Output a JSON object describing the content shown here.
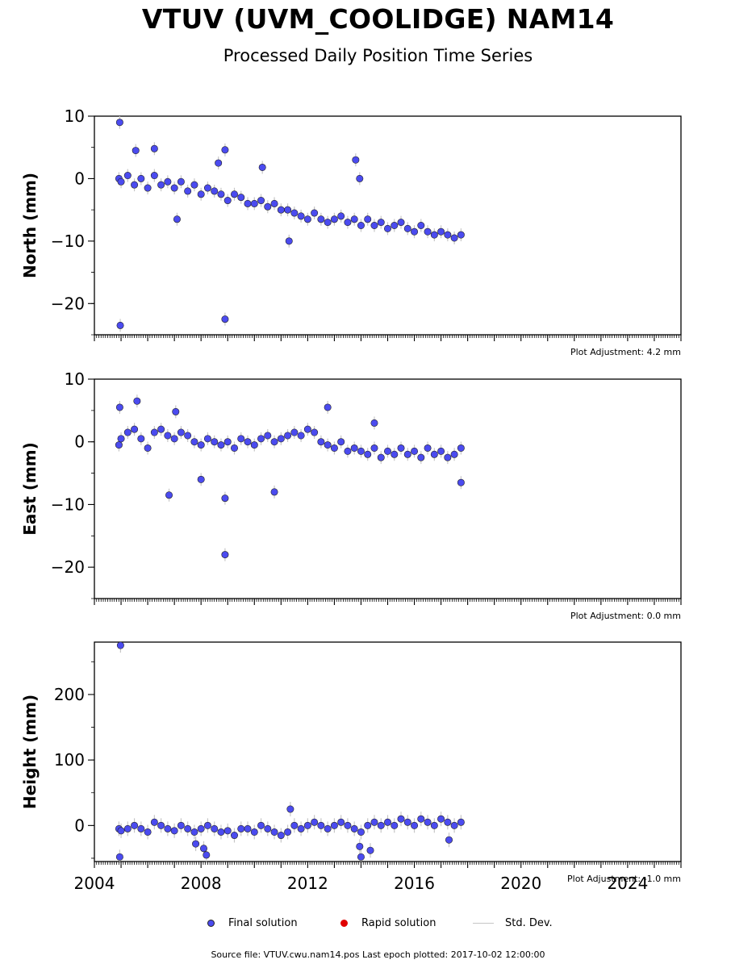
{
  "title": "VTUV (UVM_COOLIDGE) NAM14",
  "subtitle": "Processed Daily Position Time Series",
  "legend": {
    "final": "Final solution",
    "rapid": "Rapid solution",
    "std": "Std. Dev."
  },
  "source": "Source file: VTUV.cwu.nam14.pos  Last epoch plotted: 2017-10-02 12:00:00",
  "colors": {
    "final": "#4b4bef",
    "rapid": "#e00000",
    "std_dev": "#c6c6c6",
    "outline": "#222222"
  },
  "chart_data": [
    {
      "type": "scatter",
      "ylabel": "North (mm)",
      "adjustment": "Plot Adjustment: 4.2 mm",
      "xlim": [
        2004.0,
        2026.0
      ],
      "ylim": [
        -25,
        10
      ],
      "yticks": [
        10,
        0,
        -10,
        -20
      ],
      "ytick_labels": [
        "10",
        "0",
        "−10",
        "−20"
      ],
      "grid": false,
      "series": [
        {
          "key": "final",
          "x": [
            2004.92,
            2005.0,
            2005.25,
            2005.5,
            2005.75,
            2006.0,
            2006.25,
            2006.5,
            2006.75,
            2007.0,
            2007.25,
            2007.5,
            2007.75,
            2008.0,
            2008.25,
            2008.5,
            2008.75,
            2009.0,
            2009.25,
            2009.5,
            2009.75,
            2010.0,
            2010.25,
            2010.5,
            2010.75,
            2011.0,
            2011.25,
            2011.5,
            2011.75,
            2012.0,
            2012.25,
            2012.5,
            2012.75,
            2013.0,
            2013.25,
            2013.5,
            2013.75,
            2014.0,
            2014.25,
            2014.5,
            2014.75,
            2015.0,
            2015.25,
            2015.5,
            2015.75,
            2016.0,
            2016.25,
            2016.5,
            2016.75,
            2017.0,
            2017.25,
            2017.5,
            2017.75,
            2004.95,
            2004.97,
            2005.55,
            2006.25,
            2007.1,
            2008.65,
            2008.9,
            2008.9,
            2010.3,
            2011.3,
            2013.8,
            2013.95
          ],
          "y": [
            0.0,
            -0.5,
            0.5,
            -1.0,
            0.0,
            -1.5,
            0.5,
            -1.0,
            -0.5,
            -1.5,
            -0.5,
            -2.0,
            -1.0,
            -2.5,
            -1.5,
            -2.0,
            -2.5,
            -3.5,
            -2.5,
            -3.0,
            -4.0,
            -4.0,
            -3.5,
            -4.5,
            -4.0,
            -5.0,
            -5.0,
            -5.5,
            -6.0,
            -6.5,
            -5.5,
            -6.5,
            -7.0,
            -6.5,
            -6.0,
            -7.0,
            -6.5,
            -7.5,
            -6.5,
            -7.5,
            -7.0,
            -8.0,
            -7.5,
            -7.0,
            -8.0,
            -8.5,
            -7.5,
            -8.5,
            -9.0,
            -8.5,
            -9.0,
            -9.5,
            -9.0,
            9.0,
            -23.5,
            4.5,
            4.8,
            -6.5,
            2.5,
            4.6,
            -22.5,
            1.8,
            -10.0,
            3.0,
            0.0
          ]
        }
      ]
    },
    {
      "type": "scatter",
      "ylabel": "East (mm)",
      "adjustment": "Plot Adjustment: 0.0 mm",
      "xlim": [
        2004.0,
        2026.0
      ],
      "ylim": [
        -25,
        10
      ],
      "yticks": [
        10,
        0,
        -10,
        -20
      ],
      "ytick_labels": [
        "10",
        "0",
        "−10",
        "−20"
      ],
      "grid": false,
      "series": [
        {
          "key": "final",
          "x": [
            2004.92,
            2005.0,
            2005.25,
            2005.5,
            2005.75,
            2006.0,
            2006.25,
            2006.5,
            2006.75,
            2007.0,
            2007.25,
            2007.5,
            2007.75,
            2008.0,
            2008.25,
            2008.5,
            2008.75,
            2009.0,
            2009.25,
            2009.5,
            2009.75,
            2010.0,
            2010.25,
            2010.5,
            2010.75,
            2011.0,
            2011.25,
            2011.5,
            2011.75,
            2012.0,
            2012.25,
            2012.5,
            2012.75,
            2013.0,
            2013.25,
            2013.5,
            2013.75,
            2014.0,
            2014.25,
            2014.5,
            2014.75,
            2015.0,
            2015.25,
            2015.5,
            2015.75,
            2016.0,
            2016.25,
            2016.5,
            2016.75,
            2017.0,
            2017.25,
            2017.5,
            2017.75,
            2004.95,
            2005.6,
            2006.8,
            2007.05,
            2008.0,
            2008.9,
            2008.9,
            2010.75,
            2012.75,
            2014.5,
            2017.75
          ],
          "y": [
            -0.5,
            0.5,
            1.5,
            2.0,
            0.5,
            -1.0,
            1.5,
            2.0,
            1.0,
            0.5,
            1.5,
            1.0,
            0.0,
            -0.5,
            0.5,
            0.0,
            -0.5,
            0.0,
            -1.0,
            0.5,
            0.0,
            -0.5,
            0.5,
            1.0,
            0.0,
            0.5,
            1.0,
            1.5,
            1.0,
            2.0,
            1.5,
            0.0,
            -0.5,
            -1.0,
            0.0,
            -1.5,
            -1.0,
            -1.5,
            -2.0,
            -1.0,
            -2.5,
            -1.5,
            -2.0,
            -1.0,
            -2.0,
            -1.5,
            -2.5,
            -1.0,
            -2.0,
            -1.5,
            -2.5,
            -2.0,
            -1.0,
            5.5,
            6.5,
            -8.5,
            4.8,
            -6.0,
            -9.0,
            -18.0,
            -8.0,
            5.5,
            3.0,
            -6.5
          ]
        }
      ]
    },
    {
      "type": "scatter",
      "ylabel": "Height (mm)",
      "adjustment": "Plot Adjustment: -1.0 mm",
      "xlim": [
        2004.0,
        2026.0
      ],
      "ylim": [
        -55,
        280
      ],
      "yticks": [
        200,
        100,
        0
      ],
      "ytick_labels": [
        "200",
        "100",
        "0"
      ],
      "xticks": [
        2004,
        2008,
        2012,
        2016,
        2020,
        2024
      ],
      "xtick_labels": [
        "2004",
        "2008",
        "2012",
        "2016",
        "2020",
        "2024"
      ],
      "grid": false,
      "series": [
        {
          "key": "final",
          "x": [
            2004.92,
            2005.0,
            2005.25,
            2005.5,
            2005.75,
            2006.0,
            2006.25,
            2006.5,
            2006.75,
            2007.0,
            2007.25,
            2007.5,
            2007.75,
            2008.0,
            2008.25,
            2008.5,
            2008.75,
            2009.0,
            2009.25,
            2009.5,
            2009.75,
            2010.0,
            2010.25,
            2010.5,
            2010.75,
            2011.0,
            2011.25,
            2011.5,
            2011.75,
            2012.0,
            2012.25,
            2012.5,
            2012.75,
            2013.0,
            2013.25,
            2013.5,
            2013.75,
            2014.0,
            2014.25,
            2014.5,
            2014.75,
            2015.0,
            2015.25,
            2015.5,
            2015.75,
            2016.0,
            2016.25,
            2016.5,
            2016.75,
            2017.0,
            2017.25,
            2017.5,
            2017.75,
            2004.98,
            2004.95,
            2007.8,
            2008.1,
            2008.2,
            2011.35,
            2013.95,
            2014.0,
            2014.35,
            2017.3
          ],
          "y": [
            -5,
            -8,
            -5,
            0,
            -5,
            -10,
            5,
            0,
            -5,
            -8,
            0,
            -5,
            -10,
            -5,
            0,
            -5,
            -10,
            -8,
            -15,
            -5,
            -5,
            -10,
            0,
            -5,
            -10,
            -15,
            -10,
            0,
            -5,
            0,
            5,
            0,
            -5,
            0,
            5,
            0,
            -5,
            -10,
            0,
            5,
            0,
            5,
            0,
            10,
            5,
            0,
            10,
            5,
            0,
            10,
            5,
            0,
            5,
            275,
            -48,
            -28,
            -35,
            -45,
            25,
            -32,
            -48,
            -38,
            -22
          ]
        }
      ]
    }
  ]
}
